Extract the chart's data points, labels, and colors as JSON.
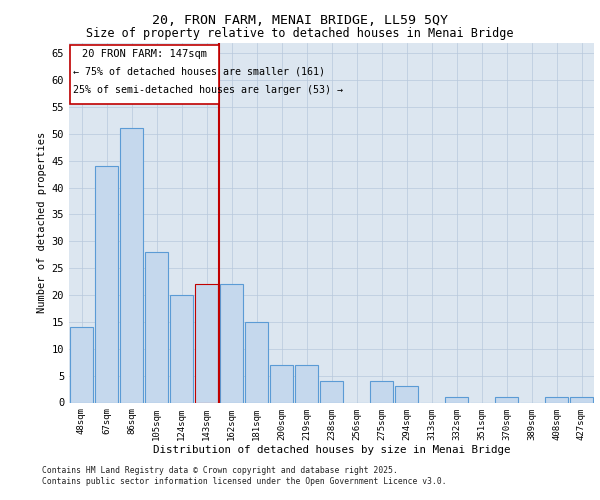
{
  "title1": "20, FRON FARM, MENAI BRIDGE, LL59 5QY",
  "title2": "Size of property relative to detached houses in Menai Bridge",
  "xlabel": "Distribution of detached houses by size in Menai Bridge",
  "ylabel": "Number of detached properties",
  "categories": [
    "48sqm",
    "67sqm",
    "86sqm",
    "105sqm",
    "124sqm",
    "143sqm",
    "162sqm",
    "181sqm",
    "200sqm",
    "219sqm",
    "238sqm",
    "256sqm",
    "275sqm",
    "294sqm",
    "313sqm",
    "332sqm",
    "351sqm",
    "370sqm",
    "389sqm",
    "408sqm",
    "427sqm"
  ],
  "values": [
    14,
    44,
    51,
    28,
    20,
    22,
    22,
    15,
    7,
    7,
    4,
    0,
    4,
    3,
    0,
    1,
    0,
    1,
    0,
    1,
    1
  ],
  "bar_color": "#c5d8ed",
  "bar_edge_color": "#5b9bd5",
  "highlight_bar_index": 5,
  "highlight_bar_color": "#c5d8ed",
  "highlight_bar_edge_color": "#c00000",
  "vline_x_index": 6,
  "vline_color": "#c00000",
  "ylim": [
    0,
    67
  ],
  "yticks": [
    0,
    5,
    10,
    15,
    20,
    25,
    30,
    35,
    40,
    45,
    50,
    55,
    60,
    65
  ],
  "annotation_title": "20 FRON FARM: 147sqm",
  "annotation_line1": "← 75% of detached houses are smaller (161)",
  "annotation_line2": "25% of semi-detached houses are larger (53) →",
  "annotation_box_color": "#ffffff",
  "annotation_box_edge": "#c00000",
  "bg_color": "#dce6f0",
  "footer1": "Contains HM Land Registry data © Crown copyright and database right 2025.",
  "footer2": "Contains public sector information licensed under the Open Government Licence v3.0."
}
